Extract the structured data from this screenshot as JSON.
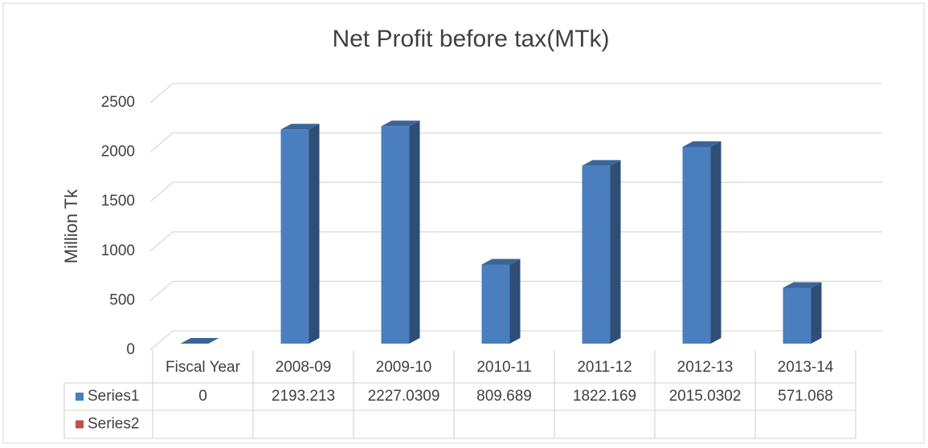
{
  "chart_data": {
    "type": "bar3d",
    "title": "Net Profit before tax(MTk)",
    "y_label": "Million Tk",
    "categories": [
      "Fiscal Year",
      "2008-09",
      "2009-10",
      "2010-11",
      "2011-12",
      "2012-13",
      "2013-14"
    ],
    "series": [
      {
        "name": "Series1",
        "color": "#4a7ebf",
        "values": [
          0,
          2193.213,
          2227.0309,
          809.689,
          1822.169,
          2015.0302,
          571.068
        ]
      },
      {
        "name": "Series2",
        "color": "#c0504d",
        "values": [
          null,
          null,
          null,
          null,
          null,
          null,
          null
        ]
      }
    ],
    "ylim": [
      0,
      2500
    ],
    "yticks": [
      0,
      500,
      1000,
      1500,
      2000,
      2500
    ],
    "grid": true,
    "data_table": true
  }
}
